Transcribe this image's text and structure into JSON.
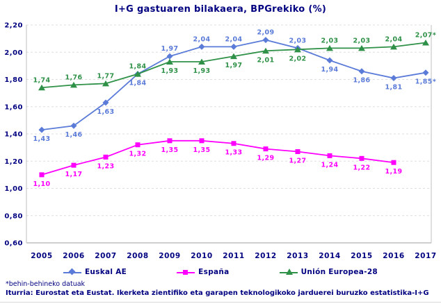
{
  "chart_data": {
    "type": "line",
    "title": "I+G gastuaren bilakaera, BPGrekiko (%)",
    "categories": [
      "2005",
      "2006",
      "2007",
      "2008",
      "2009",
      "2010",
      "2011",
      "2012",
      "2013",
      "2014",
      "2015",
      "2016",
      "2017"
    ],
    "xlabel": "",
    "ylabel": "",
    "ylim": [
      0.6,
      2.2
    ],
    "ytick_step": 0.2,
    "ytick_labels": [
      "0,60",
      "0,80",
      "1,00",
      "1,20",
      "1,40",
      "1,60",
      "1,80",
      "2,00",
      "2,20"
    ],
    "grid": "horizontal-dashed",
    "legend_position": "bottom",
    "decimal_separator": ",",
    "series": [
      {
        "name": "Euskal AE",
        "color": "#5b7bd9",
        "marker": "diamond",
        "values": [
          1.43,
          1.46,
          1.63,
          1.84,
          1.97,
          2.04,
          2.04,
          2.09,
          2.03,
          1.94,
          1.86,
          1.81,
          1.85
        ],
        "point_labels": [
          "1,43",
          "1,46",
          "1,63",
          "1,84",
          "1,97",
          "2,04",
          "2,04",
          "2,09",
          "2,03",
          "1,94",
          "1,86",
          "1,81",
          "1,85*"
        ],
        "label_side": [
          "b",
          "b",
          "b",
          "b",
          "a",
          "a",
          "a",
          "a",
          "a",
          "b",
          "b",
          "b",
          "b"
        ]
      },
      {
        "name": "España",
        "color": "#ff00ff",
        "marker": "square",
        "values": [
          1.1,
          1.17,
          1.23,
          1.32,
          1.35,
          1.35,
          1.33,
          1.29,
          1.27,
          1.24,
          1.22,
          1.19,
          null
        ],
        "point_labels": [
          "1,10",
          "1,17",
          "1,23",
          "1,32",
          "1,35",
          "1,35",
          "1,33",
          "1,29",
          "1,27",
          "1,24",
          "1,22",
          "1,19",
          ""
        ],
        "label_side": [
          "b",
          "b",
          "b",
          "b",
          "b",
          "b",
          "b",
          "b",
          "b",
          "b",
          "b",
          "b",
          "b"
        ]
      },
      {
        "name": "Unión Europea-28",
        "color": "#2e9147",
        "marker": "triangle",
        "values": [
          1.74,
          1.76,
          1.77,
          1.84,
          1.93,
          1.93,
          1.97,
          2.01,
          2.02,
          2.03,
          2.03,
          2.04,
          2.07
        ],
        "point_labels": [
          "1,74",
          "1,76",
          "1,77",
          "1,84",
          "1,93",
          "1,93",
          "1,97",
          "2,01",
          "2,02",
          "2,03",
          "2,03",
          "2,04",
          "2,07*"
        ],
        "label_side": [
          "a",
          "a",
          "a",
          "a",
          "b",
          "b",
          "b",
          "b",
          "b",
          "a",
          "a",
          "a",
          "a"
        ]
      }
    ]
  },
  "footnote": "*behin-behineko datuak",
  "source_line": "Iturria: Eurostat eta Eustat. Ikerketa zientifiko eta garapen teknologikoko jarduerei buruzko estatistika-I+G",
  "colors": {
    "title_text": "#000080",
    "axis_text": "#000080",
    "grid_line": "#dedede",
    "axis_line": "#bfbfbf"
  }
}
